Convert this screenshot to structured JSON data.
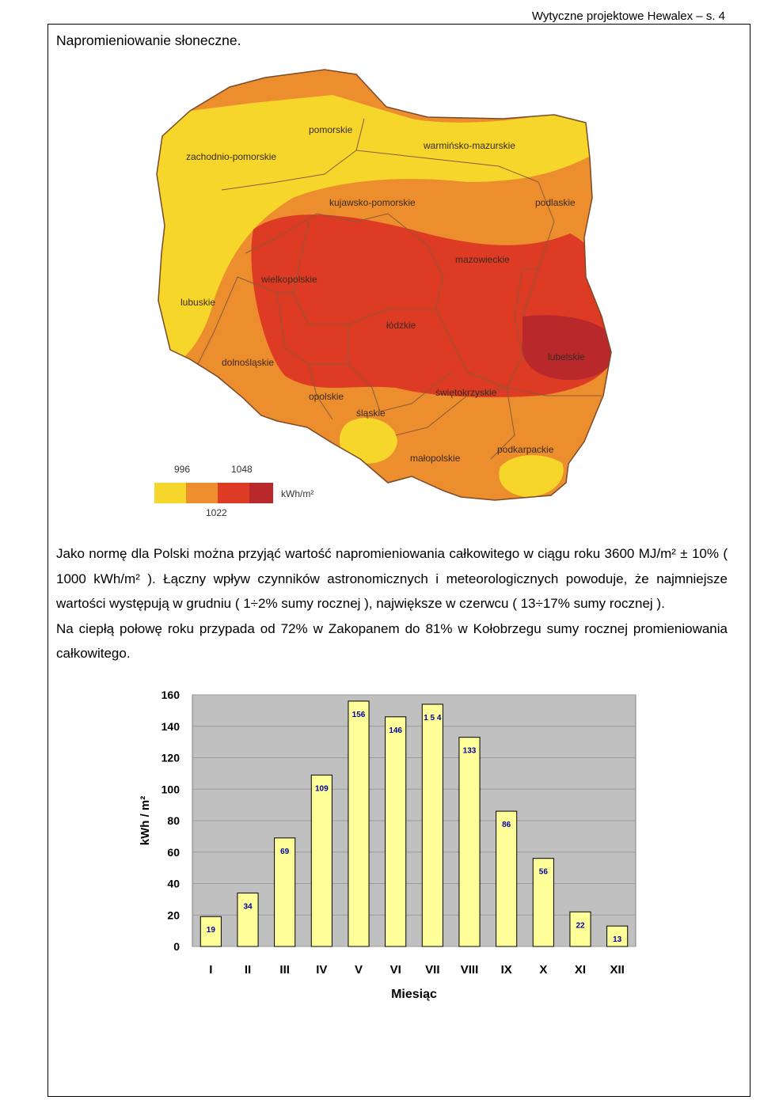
{
  "header": {
    "doc_ref": "Wytyczne projektowe Hewalex – s. 4",
    "section_title": "Napromieniowanie słoneczne."
  },
  "map": {
    "regions": [
      "pomorskie",
      "zachodnio-pomorskie",
      "warmińsko-mazurskie",
      "kujawsko-pomorskie",
      "podlaskie",
      "mazowieckie",
      "wielkopolskie",
      "lubuskie",
      "łódzkie",
      "lubelskie",
      "dolnośląskie",
      "świętokrzyskie",
      "opolskie",
      "śląskie",
      "podkarpackie",
      "małopolskie"
    ],
    "legend": {
      "upper_ticks": [
        "996",
        "1048"
      ],
      "lower_tick": "1022",
      "unit": "kWh/m²",
      "colors": [
        "#f6d62a",
        "#ec8d2e",
        "#dd3b23",
        "#b9282a"
      ]
    }
  },
  "text": {
    "p1": "Jako normę dla Polski można przyjąć wartość napromieniowania całkowitego w ciągu roku 3600 MJ/m² ± 10% ( 1000 kWh/m² ). Łączny wpływ czynników astronomicznych i meteorologicznych powoduje, że najmniejsze wartości występują w grudniu ( 1÷2% sumy rocznej ), największe w czerwcu ( 13÷17% sumy rocznej ).",
    "p2": "Na ciepłą połowę roku przypada od 72% w Zakopanem do 81% w Kołobrzegu sumy rocznej promieniowania całkowitego."
  },
  "chart_data": {
    "type": "bar",
    "categories": [
      "I",
      "II",
      "III",
      "IV",
      "V",
      "VI",
      "VII",
      "VIII",
      "IX",
      "X",
      "XI",
      "XII"
    ],
    "values": [
      19,
      34,
      69,
      109,
      156,
      146,
      154,
      133,
      86,
      56,
      22,
      13
    ],
    "value_labels": [
      "19",
      "34",
      "69",
      "109",
      "156",
      "146",
      "1 5 4",
      "133",
      "86",
      "56",
      "22",
      "13"
    ],
    "yticks": [
      "0",
      "20",
      "40",
      "60",
      "80",
      "100",
      "120",
      "140",
      "160"
    ],
    "ylim": [
      0,
      160
    ],
    "ylabel": "kWh / m²",
    "xlabel": "Miesiąc",
    "grid": true,
    "colors": {
      "bar": "#ffff99",
      "plot_bg": "#c0c0c0",
      "value_label": "#0000a0"
    }
  }
}
